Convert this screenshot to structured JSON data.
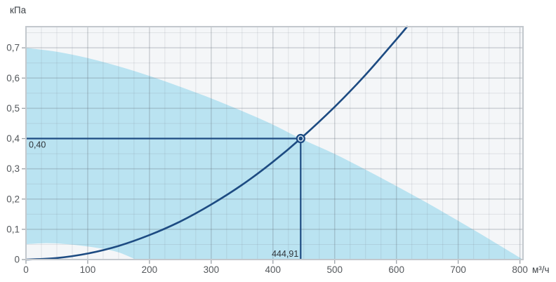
{
  "axes": {
    "y_title": "кПа",
    "x_title": "м³/ч",
    "x_tick_values": [
      0,
      100,
      200,
      300,
      400,
      500,
      600,
      700,
      800
    ],
    "x_tick_labels": [
      "0",
      "100",
      "200",
      "300",
      "400",
      "500",
      "600",
      "700",
      "800"
    ],
    "y_tick_values": [
      0,
      0.1,
      0.2,
      0.3,
      0.4,
      0.5,
      0.6,
      0.7
    ],
    "y_tick_labels": [
      "0",
      "0,1",
      "0,2",
      "0,3",
      "0,4",
      "0,5",
      "0,6",
      "0,7"
    ]
  },
  "chart_data": {
    "type": "area",
    "title": "",
    "xlabel": "м³/ч",
    "ylabel": "кПа",
    "xlim": [
      0,
      805
    ],
    "ylim": [
      0,
      0.77
    ],
    "grid": "on",
    "x_minor_step": 25,
    "y_minor_step": 0.05,
    "series": [
      {
        "name": "operating-envelope-upper-boundary",
        "type": "area-boundary",
        "points": [
          [
            0,
            0.7
          ],
          [
            50,
            0.687
          ],
          [
            100,
            0.666
          ],
          [
            150,
            0.639
          ],
          [
            200,
            0.607
          ],
          [
            250,
            0.571
          ],
          [
            300,
            0.533
          ],
          [
            350,
            0.491
          ],
          [
            400,
            0.446
          ],
          [
            444.91,
            0.4
          ],
          [
            500,
            0.349
          ],
          [
            550,
            0.297
          ],
          [
            600,
            0.243
          ],
          [
            650,
            0.187
          ],
          [
            700,
            0.128
          ],
          [
            750,
            0.068
          ],
          [
            805,
            0
          ]
        ]
      },
      {
        "name": "operating-envelope-lower-boundary",
        "type": "area-boundary",
        "points": [
          [
            0,
            0.051
          ],
          [
            30,
            0.054
          ],
          [
            60,
            0.052
          ],
          [
            90,
            0.046
          ],
          [
            120,
            0.037
          ],
          [
            150,
            0.024
          ],
          [
            178,
            0
          ]
        ]
      },
      {
        "name": "system-resistance-curve",
        "type": "line",
        "points": [
          [
            0,
            0
          ],
          [
            50,
            0.005
          ],
          [
            100,
            0.02
          ],
          [
            150,
            0.045
          ],
          [
            200,
            0.081
          ],
          [
            250,
            0.126
          ],
          [
            300,
            0.182
          ],
          [
            350,
            0.247
          ],
          [
            400,
            0.323
          ],
          [
            444.91,
            0.4
          ],
          [
            500,
            0.505
          ],
          [
            550,
            0.611
          ],
          [
            600,
            0.728
          ],
          [
            617.3,
            0.77
          ]
        ]
      }
    ],
    "working_point": {
      "flow": 444.91,
      "pressure": 0.4,
      "flow_label": "444,91",
      "pressure_label": "0,40"
    }
  },
  "colors": {
    "plot_background": "#f4f6f8",
    "envelope_fill": "#bae3f1",
    "curve": "#1d4b82",
    "marker": "#1d4b82",
    "marker_ring": "#d8e7f2",
    "grid_minor": "rgba(110,120,132,0.16)",
    "grid_major": "rgba(90,100,112,0.26)",
    "border": "#c3c8cd",
    "tick": "#9aa0a6"
  }
}
